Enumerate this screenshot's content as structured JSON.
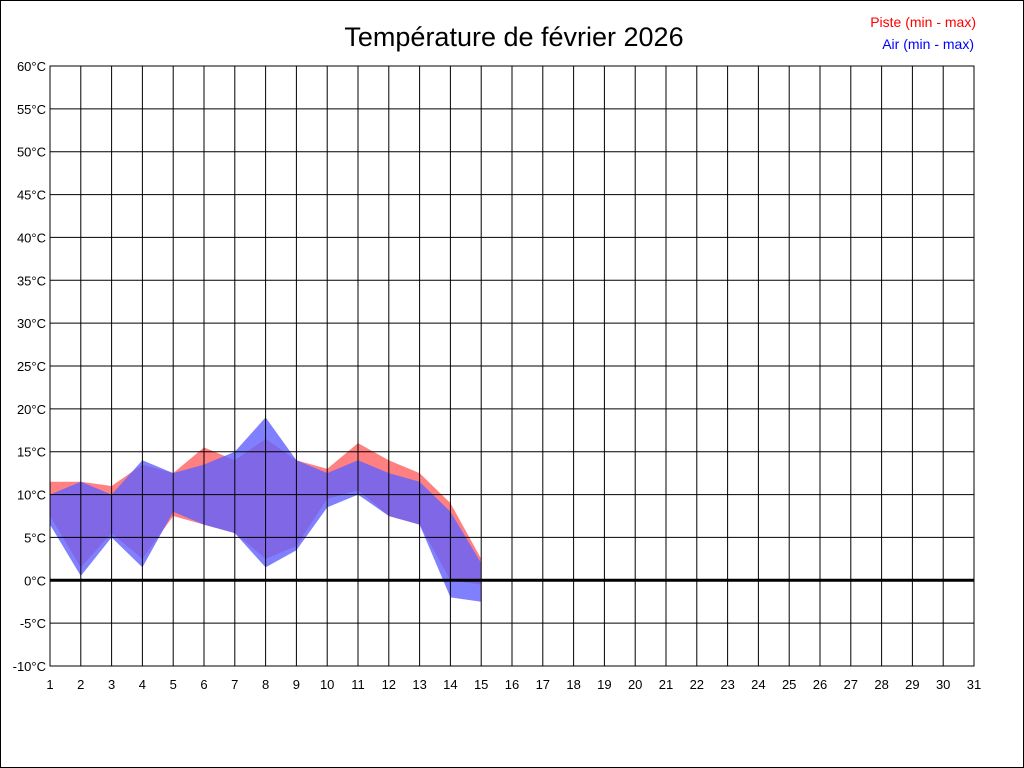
{
  "chart_data": {
    "type": "area",
    "title": "Température de février 2026",
    "xlabel": "",
    "ylabel": "",
    "x": [
      1,
      2,
      3,
      4,
      5,
      6,
      7,
      8,
      9,
      10,
      11,
      12,
      13,
      14,
      15,
      16,
      17,
      18,
      19,
      20,
      21,
      22,
      23,
      24,
      25,
      26,
      27,
      28,
      29,
      30,
      31
    ],
    "xlim": [
      1,
      31
    ],
    "ylim": [
      -10,
      60
    ],
    "ytick_step": 5,
    "ytick_suffix": "°C",
    "grid": true,
    "legend_placement": "top-right",
    "series": [
      {
        "name": "Piste (min - max)",
        "color": "#ff0000",
        "fill": "#ff6060",
        "x": [
          1,
          2,
          3,
          4,
          5,
          6,
          7,
          8,
          9,
          10,
          11,
          12,
          13,
          14,
          15
        ],
        "min": [
          7.5,
          1.5,
          5.5,
          2.5,
          7.5,
          6.5,
          5.5,
          2.5,
          4.0,
          9.5,
          10.5,
          7.5,
          6.5,
          0.0,
          -0.5
        ],
        "max": [
          11.5,
          11.5,
          11.0,
          13.5,
          12.5,
          15.5,
          14.0,
          16.5,
          14.0,
          13.0,
          16.0,
          14.0,
          12.5,
          9.0,
          2.5
        ]
      },
      {
        "name": "Air (min - max)",
        "color": "#0000ff",
        "fill": "#6060ff",
        "x": [
          1,
          2,
          3,
          4,
          5,
          6,
          7,
          8,
          9,
          10,
          11,
          12,
          13,
          14,
          15
        ],
        "min": [
          6.5,
          0.5,
          5.0,
          1.5,
          8.0,
          6.5,
          5.5,
          1.5,
          3.5,
          8.5,
          10.0,
          7.5,
          6.5,
          -2.0,
          -2.5
        ],
        "max": [
          10.0,
          11.5,
          10.0,
          14.0,
          12.5,
          13.5,
          15.0,
          19.0,
          14.0,
          12.5,
          14.0,
          12.5,
          11.5,
          8.0,
          2.0
        ]
      }
    ]
  }
}
